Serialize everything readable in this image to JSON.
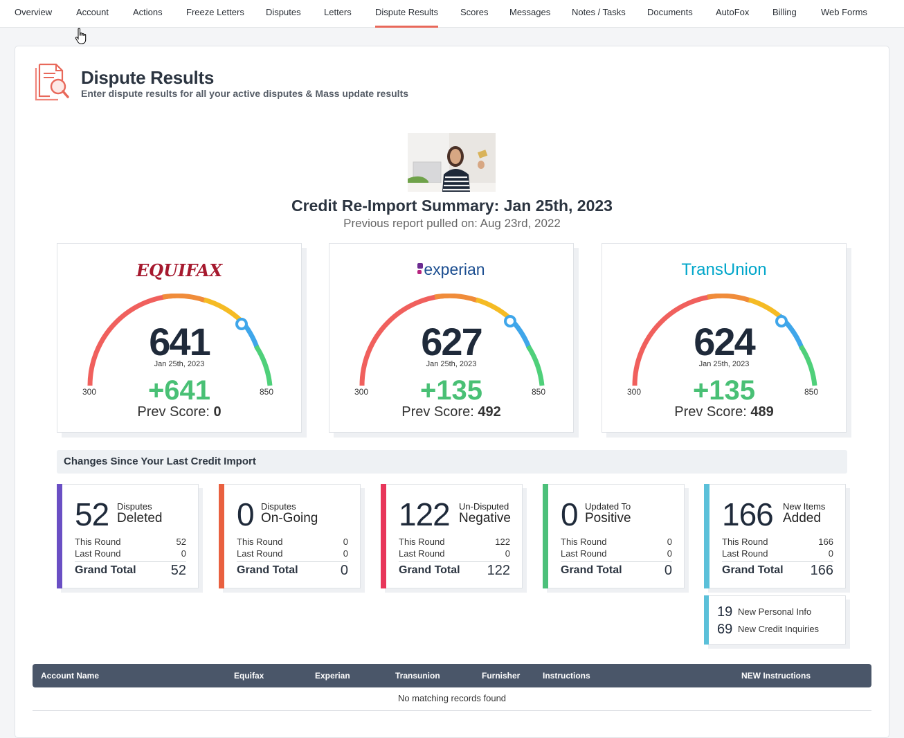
{
  "nav": {
    "tabs": [
      {
        "label": "Overview"
      },
      {
        "label": "Account"
      },
      {
        "label": "Actions"
      },
      {
        "label": "Freeze Letters"
      },
      {
        "label": "Disputes"
      },
      {
        "label": "Letters"
      },
      {
        "label": "Dispute Results",
        "active": true
      },
      {
        "label": "Scores"
      },
      {
        "label": "Messages"
      },
      {
        "label": "Notes / Tasks"
      },
      {
        "label": "Documents"
      },
      {
        "label": "AutoFox"
      },
      {
        "label": "Billing"
      },
      {
        "label": "Web Forms"
      }
    ]
  },
  "header": {
    "title": "Dispute Results",
    "subtitle": "Enter dispute results for all your active disputes & Mass update results",
    "icon": "document-search-icon"
  },
  "summary": {
    "title": "Credit Re-Import Summary: Jan 25th, 2023",
    "previous": "Previous report pulled on: Aug 23rd, 2022"
  },
  "bureaus": [
    {
      "name": "EQUIFAX",
      "score": "641",
      "date": "Jan 25th, 2023",
      "min": "300",
      "max": "850",
      "delta": "+641",
      "prev_label": "Prev Score:",
      "prev_value": "0",
      "color": "#a6192e"
    },
    {
      "name": "experian",
      "score": "627",
      "date": "Jan 25th, 2023",
      "min": "300",
      "max": "850",
      "delta": "+135",
      "prev_label": "Prev Score:",
      "prev_value": "492",
      "color": "#1d4f91"
    },
    {
      "name": "TransUnion",
      "score": "624",
      "date": "Jan 25th, 2023",
      "min": "300",
      "max": "850",
      "delta": "+135",
      "prev_label": "Prev Score:",
      "prev_value": "489",
      "color": "#00a6ca"
    }
  ],
  "changes": {
    "title": "Changes Since Your Last Credit Import",
    "cards": [
      {
        "big": "52",
        "line1": "Disputes",
        "line2": "Deleted",
        "this_label": "This Round",
        "this_value": "52",
        "last_label": "Last Round",
        "last_value": "0",
        "total_label": "Grand Total",
        "total_value": "52",
        "color": "#6a4fc4"
      },
      {
        "big": "0",
        "line1": "Disputes",
        "line2": "On-Going",
        "this_label": "This Round",
        "this_value": "0",
        "last_label": "Last Round",
        "last_value": "0",
        "total_label": "Grand Total",
        "total_value": "0",
        "color": "#e9603f"
      },
      {
        "big": "122",
        "line1": "Un-Disputed",
        "line2": "Negative",
        "this_label": "This Round",
        "this_value": "122",
        "last_label": "Last Round",
        "last_value": "0",
        "total_label": "Grand Total",
        "total_value": "122",
        "color": "#e8365a"
      },
      {
        "big": "0",
        "line1": "Updated To",
        "line2": "Positive",
        "this_label": "This Round",
        "this_value": "0",
        "last_label": "Last Round",
        "last_value": "0",
        "total_label": "Grand Total",
        "total_value": "0",
        "color": "#4cc07a"
      },
      {
        "big": "166",
        "line1": "New Items",
        "line2": "Added",
        "this_label": "This Round",
        "this_value": "166",
        "last_label": "Last Round",
        "last_value": "0",
        "total_label": "Grand Total",
        "total_value": "166",
        "color": "#5bc0d9"
      }
    ],
    "extra": {
      "personal_count": "19",
      "personal_label": "New Personal Info",
      "inquiries_count": "69",
      "inquiries_label": "New Credit Inquiries"
    }
  },
  "table": {
    "columns": [
      "Account  Name",
      "Equifax",
      "Experian",
      "Transunion",
      "Furnisher",
      "Instructions",
      "NEW Instructions"
    ],
    "empty_message": "No matching records found"
  }
}
